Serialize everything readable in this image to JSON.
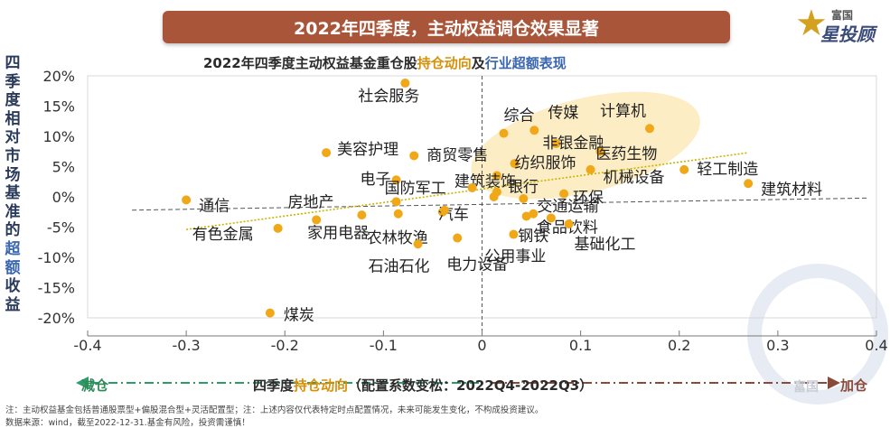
{
  "banner": {
    "title": "2022年四季度，主动权益调仓效果显著"
  },
  "logo": {
    "small": "富国",
    "big": "星投顾"
  },
  "subtitle": {
    "part1": "2022年四季度主动权益基金重仓股",
    "part2": "持仓动向",
    "part3": "及",
    "part4": "行业超额表现"
  },
  "y_axis_label": {
    "chars": [
      "四",
      "季",
      "度",
      "相",
      "对",
      "市",
      "场",
      "基",
      "准",
      "的"
    ],
    "hl_chars": [
      "超",
      "额"
    ],
    "tail_chars": [
      "收",
      "益"
    ]
  },
  "x_axis": {
    "left_label": "减仓",
    "right_label": "加仓",
    "title_part1": "四季度",
    "title_part2": "持仓动向",
    "title_part3": "（配置系数变松：2022Q4-2022Q3）"
  },
  "notes": {
    "line1": "注：主动权益基金包括普通股票型+偏股混合型+灵活配置型；注：上述内容仅代表特定时点配置情况，未来可能发生变化，不构成投资建议。",
    "line2": "数据来源：wind，截至2022-12-31.基金有风险，投资需谨慎！"
  },
  "watermark": "富国",
  "colors": {
    "point": "#f0a818",
    "trend": "#c8b400",
    "highlight": "#fbe7b0",
    "banner": "#a9553a",
    "grid_dash": "#555555"
  },
  "chart_data": {
    "type": "scatter",
    "xlim": [
      -0.4,
      0.4
    ],
    "ylim": [
      -20,
      20
    ],
    "xticks": [
      "-0.4",
      "-0.3",
      "-0.2",
      "-0.1",
      "0",
      "0.1",
      "0.2",
      "0.3",
      "0.4"
    ],
    "yticks": [
      "20%",
      "15%",
      "10%",
      "5%",
      "0%",
      "-5%",
      "-10%",
      "-15%",
      "-20%"
    ],
    "points": [
      {
        "label": "社会服务",
        "x": -0.078,
        "y": 18.8
      },
      {
        "label": "综合",
        "x": 0.022,
        "y": 10.5
      },
      {
        "label": "传媒",
        "x": 0.053,
        "y": 11.0
      },
      {
        "label": "计算机",
        "x": 0.17,
        "y": 11.3
      },
      {
        "label": "非银金融",
        "x": 0.075,
        "y": 8.8
      },
      {
        "label": "医药生物",
        "x": 0.12,
        "y": 7.5
      },
      {
        "label": "美容护理",
        "x": -0.158,
        "y": 7.3
      },
      {
        "label": "商贸零售",
        "x": -0.069,
        "y": 6.8
      },
      {
        "label": "纺织服饰",
        "x": 0.033,
        "y": 5.5
      },
      {
        "label": "机械设备",
        "x": 0.11,
        "y": 4.5
      },
      {
        "label": "轻工制造",
        "x": 0.205,
        "y": 4.5
      },
      {
        "label": "建筑装饰",
        "x": 0.015,
        "y": 3.5
      },
      {
        "label": "电子",
        "x": -0.087,
        "y": 2.8
      },
      {
        "label": "建筑材料",
        "x": 0.27,
        "y": 2.2
      },
      {
        "label": "国防军工",
        "x": -0.01,
        "y": 1.5
      },
      {
        "label": "银行",
        "x": 0.015,
        "y": 0.8
      },
      {
        "label": "通信",
        "x": -0.3,
        "y": -0.5
      },
      {
        "label": "房地产",
        "x": -0.087,
        "y": -0.8
      },
      {
        "label": "环保",
        "x": 0.083,
        "y": 0.5
      },
      {
        "label": "交通运输",
        "x": 0.042,
        "y": -0.3
      },
      {
        "label": "农林牧渔",
        "x": -0.085,
        "y": -2.8
      },
      {
        "label": "汽车",
        "x": -0.04,
        "y": -2.5
      },
      {
        "label": "钢铁",
        "x": 0.052,
        "y": -2.8
      },
      {
        "label": "食品饮料",
        "x": 0.07,
        "y": -3.5
      },
      {
        "label": "有色金属",
        "x": -0.207,
        "y": -5.2
      },
      {
        "label": "家用电器",
        "x": -0.168,
        "y": -3.8
      },
      {
        "label": "公用事业",
        "x": 0.032,
        "y": -6.2
      },
      {
        "label": "基础化工",
        "x": 0.088,
        "y": -4.5
      },
      {
        "label": "石油石化",
        "x": -0.065,
        "y": -7.8
      },
      {
        "label": "电力设备",
        "x": -0.025,
        "y": -6.8
      },
      {
        "label": "煤炭",
        "x": -0.215,
        "y": -19.2
      },
      {
        "label": "",
        "x": -0.122,
        "y": -3.0
      },
      {
        "label": "",
        "x": -0.038,
        "y": -2.2
      },
      {
        "label": "",
        "x": 0.012,
        "y": 0.0
      },
      {
        "label": "",
        "x": 0.045,
        "y": -3.2
      }
    ],
    "trendline": {
      "x": [
        -0.3,
        0.27
      ],
      "y": [
        -5.4,
        7.3
      ]
    },
    "reference_line": {
      "x": [
        -0.355,
        0.39
      ],
      "y": [
        -2.2,
        -0.2
      ]
    }
  }
}
